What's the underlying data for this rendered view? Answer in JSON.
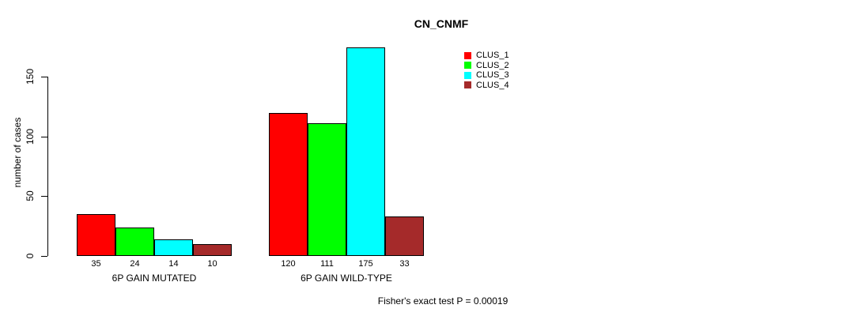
{
  "chart_data": {
    "type": "bar",
    "title": "CN_CNMF",
    "xlabel": "",
    "ylabel": "number of cases",
    "ylim": [
      0,
      175
    ],
    "yticks": [
      0,
      50,
      100,
      150
    ],
    "grid": false,
    "categories": [
      "6P GAIN MUTATED",
      "6P GAIN WILD-TYPE"
    ],
    "series": [
      {
        "name": "CLUS_1",
        "color": "#ff0000",
        "values": [
          35,
          120
        ]
      },
      {
        "name": "CLUS_2",
        "color": "#00ff00",
        "values": [
          24,
          111
        ]
      },
      {
        "name": "CLUS_3",
        "color": "#00ffff",
        "values": [
          14,
          175
        ]
      },
      {
        "name": "CLUS_4",
        "color": "#a52a2a",
        "values": [
          10,
          33
        ]
      }
    ],
    "bar_value_labels_shown": true,
    "legend_position": "top-right"
  },
  "footer": {
    "text": "Fisher's exact test P = 0.00019"
  }
}
